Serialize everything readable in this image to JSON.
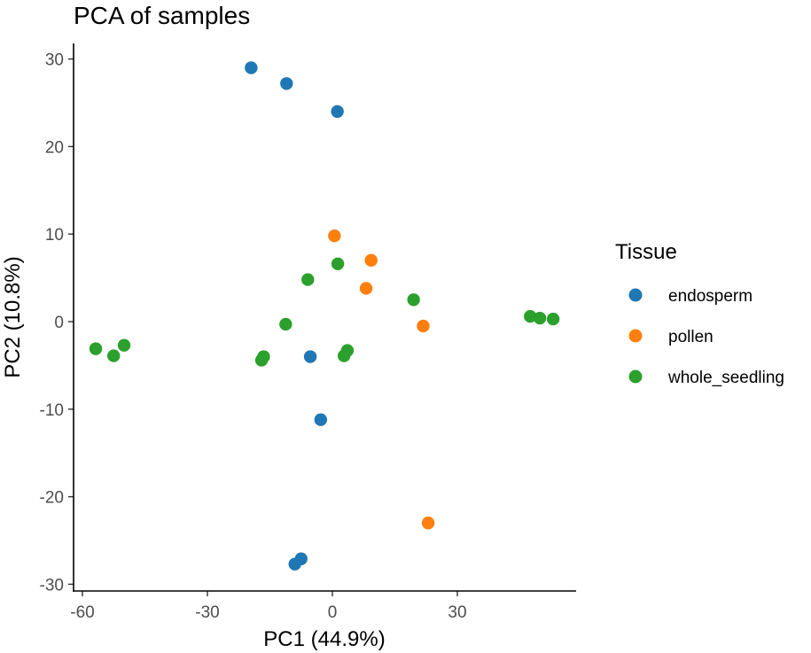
{
  "chart_data": {
    "type": "scatter",
    "title": "PCA of samples",
    "xlabel": "PC1 (44.9%)",
    "ylabel": "PC2 (10.8%)",
    "xlim": [
      -61,
      58
    ],
    "ylim": [
      -31,
      32
    ],
    "xticks": [
      -60,
      -30,
      0,
      30
    ],
    "yticks": [
      -30,
      -20,
      -10,
      0,
      10,
      20,
      30
    ],
    "grid": false,
    "legend": {
      "title": "Tissue",
      "position": "right",
      "entries": [
        {
          "name": "endosperm",
          "color": "#1f77b4"
        },
        {
          "name": "pollen",
          "color": "#ff7f0e"
        },
        {
          "name": "whole_seedling",
          "color": "#2ca02c"
        }
      ]
    },
    "series": [
      {
        "name": "endosperm",
        "color": "#1f77b4",
        "points": [
          {
            "x": -19.5,
            "y": 29.0
          },
          {
            "x": -11.0,
            "y": 27.2
          },
          {
            "x": 1.2,
            "y": 24.0
          },
          {
            "x": -5.3,
            "y": -4.0
          },
          {
            "x": -2.8,
            "y": -11.2
          },
          {
            "x": -7.5,
            "y": -27.1
          },
          {
            "x": -9.0,
            "y": -27.7
          }
        ]
      },
      {
        "name": "pollen",
        "color": "#ff7f0e",
        "points": [
          {
            "x": 0.5,
            "y": 9.8
          },
          {
            "x": 9.3,
            "y": 7.0
          },
          {
            "x": 8.1,
            "y": 3.8
          },
          {
            "x": 21.8,
            "y": -0.5
          },
          {
            "x": 23.0,
            "y": -23.0
          }
        ]
      },
      {
        "name": "whole_seedling",
        "color": "#2ca02c",
        "points": [
          {
            "x": 1.3,
            "y": 6.6
          },
          {
            "x": -5.9,
            "y": 4.8
          },
          {
            "x": 19.5,
            "y": 2.5
          },
          {
            "x": 47.5,
            "y": 0.6
          },
          {
            "x": 49.8,
            "y": 0.4
          },
          {
            "x": 53.0,
            "y": 0.3
          },
          {
            "x": -11.2,
            "y": -0.3
          },
          {
            "x": -56.8,
            "y": -3.1
          },
          {
            "x": -50.0,
            "y": -2.7
          },
          {
            "x": -52.5,
            "y": -3.9
          },
          {
            "x": -16.5,
            "y": -4.0
          },
          {
            "x": -17.0,
            "y": -4.4
          },
          {
            "x": 3.6,
            "y": -3.3
          },
          {
            "x": 2.8,
            "y": -3.9
          }
        ]
      }
    ]
  }
}
